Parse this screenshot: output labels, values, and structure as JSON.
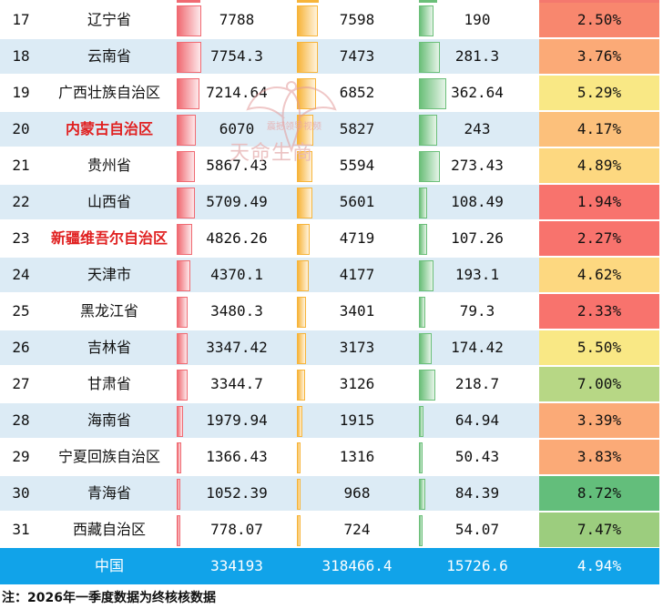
{
  "rows": [
    {
      "rank": "17",
      "name": "辽宁省",
      "v1": "7788",
      "v2": "7598",
      "v3": "190",
      "rate": "2.50%",
      "red": false
    },
    {
      "rank": "18",
      "name": "云南省",
      "v1": "7754.3",
      "v2": "7473",
      "v3": "281.3",
      "rate": "3.76%",
      "red": false
    },
    {
      "rank": "19",
      "name": "广西壮族自治区",
      "v1": "7214.64",
      "v2": "6852",
      "v3": "362.64",
      "rate": "5.29%",
      "red": false
    },
    {
      "rank": "20",
      "name": "内蒙古自治区",
      "v1": "6070",
      "v2": "5827",
      "v3": "243",
      "rate": "4.17%",
      "red": true
    },
    {
      "rank": "21",
      "name": "贵州省",
      "v1": "5867.43",
      "v2": "5594",
      "v3": "273.43",
      "rate": "4.89%",
      "red": false
    },
    {
      "rank": "22",
      "name": "山西省",
      "v1": "5709.49",
      "v2": "5601",
      "v3": "108.49",
      "rate": "1.94%",
      "red": false
    },
    {
      "rank": "23",
      "name": "新疆维吾尔自治区",
      "v1": "4826.26",
      "v2": "4719",
      "v3": "107.26",
      "rate": "2.27%",
      "red": true
    },
    {
      "rank": "24",
      "name": "天津市",
      "v1": "4370.1",
      "v2": "4177",
      "v3": "193.1",
      "rate": "4.62%",
      "red": false
    },
    {
      "rank": "25",
      "name": "黑龙江省",
      "v1": "3480.3",
      "v2": "3401",
      "v3": "79.3",
      "rate": "2.33%",
      "red": false
    },
    {
      "rank": "26",
      "name": "吉林省",
      "v1": "3347.42",
      "v2": "3173",
      "v3": "174.42",
      "rate": "5.50%",
      "red": false
    },
    {
      "rank": "27",
      "name": "甘肃省",
      "v1": "3344.7",
      "v2": "3126",
      "v3": "218.7",
      "rate": "7.00%",
      "red": false
    },
    {
      "rank": "28",
      "name": "海南省",
      "v1": "1979.94",
      "v2": "1915",
      "v3": "64.94",
      "rate": "3.39%",
      "red": false
    },
    {
      "rank": "29",
      "name": "宁夏回族自治区",
      "v1": "1366.43",
      "v2": "1316",
      "v3": "50.43",
      "rate": "3.83%",
      "red": false
    },
    {
      "rank": "30",
      "name": "青海省",
      "v1": "1052.39",
      "v2": "968",
      "v3": "84.39",
      "rate": "8.72%",
      "red": false
    },
    {
      "rank": "31",
      "name": "西藏自治区",
      "v1": "778.07",
      "v2": "724",
      "v3": "54.07",
      "rate": "7.47%",
      "red": false
    }
  ],
  "total": {
    "name": "中国",
    "v1": "334193",
    "v2": "318466.4",
    "v3": "15726.6",
    "rate": "4.94%"
  },
  "footnote": "注：2026年一季度数据为终核核数据",
  "watermark": {
    "text": "天命生商",
    "small_text": "震撼领导视频"
  },
  "colors": {
    "bar1": "#f06a72",
    "bar2": "#f7b43a",
    "bar3": "#6bbf79",
    "total_bg": "#11a3e9",
    "odd_row": "#dcebf5",
    "red_name": "#e02020"
  },
  "scales": {
    "bar1_max": 8100,
    "bar2_max": 7900,
    "bar3_max": 385
  },
  "chart_data": {
    "type": "table",
    "categories": [
      "辽宁省",
      "云南省",
      "广西壮族自治区",
      "内蒙古自治区",
      "贵州省",
      "山西省",
      "新疆维吾尔自治区",
      "天津市",
      "黑龙江省",
      "吉林省",
      "甘肃省",
      "海南省",
      "宁夏回族自治区",
      "青海省",
      "西藏自治区"
    ],
    "series": [
      {
        "values": [
          7788,
          7754.3,
          7214.64,
          6070,
          5867.43,
          5709.49,
          4826.26,
          4370.1,
          3480.3,
          3347.42,
          3344.7,
          1979.94,
          1366.43,
          1052.39,
          778.07
        ]
      },
      {
        "values": [
          7598,
          7473,
          6852,
          5827,
          5594,
          5601,
          4719,
          4177,
          3401,
          3173,
          3126,
          1915,
          1316,
          968,
          724
        ]
      },
      {
        "values": [
          190,
          281.3,
          362.64,
          243,
          273.43,
          108.49,
          107.26,
          193.1,
          79.3,
          174.42,
          218.7,
          64.94,
          50.43,
          84.39,
          54.07
        ]
      },
      {
        "values": [
          2.5,
          3.76,
          5.29,
          4.17,
          4.89,
          1.94,
          2.27,
          4.62,
          2.33,
          5.5,
          7.0,
          3.39,
          3.83,
          8.72,
          7.47
        ]
      }
    ]
  }
}
